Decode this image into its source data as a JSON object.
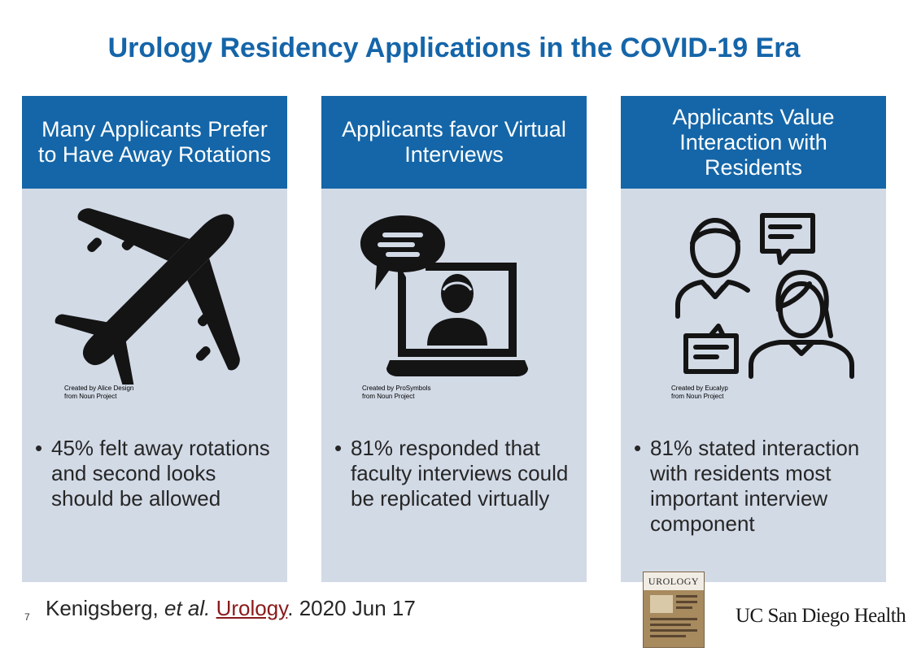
{
  "slide_title": "Urology Residency Applications in the COVID-19 Era",
  "colors": {
    "accent": "#1466a8",
    "card_bg": "#d2dae6",
    "title": "#1565a9",
    "link": "#8b1a1a"
  },
  "cards": [
    {
      "header": "Many Applicants Prefer to Have Away Rotations",
      "icon": "airplane-icon",
      "credit": "Created by Alice Design\nfrom Noun Project",
      "bullet": "45% felt away rotations and second looks should be allowed"
    },
    {
      "header": "Applicants favor Virtual Interviews",
      "icon": "video-call-icon",
      "credit": "Created by ProSymbols\nfrom Noun Project",
      "bullet": "81% responded that faculty interviews could be replicated virtually"
    },
    {
      "header": "Applicants Value Interaction with Residents",
      "icon": "conversation-icon",
      "credit": "Created by Eucalyp\nfrom Noun Project",
      "bullet": "81% stated interaction with residents most important interview component"
    }
  ],
  "footer": {
    "page_number": "7",
    "citation_author": "Kenigsberg, ",
    "citation_etal": "et al.",
    "citation_journal": "Urology",
    "citation_date": ". 2020 Jun 17",
    "journal_cover_title": "UROLOGY",
    "brand": "UC San Diego Health"
  }
}
